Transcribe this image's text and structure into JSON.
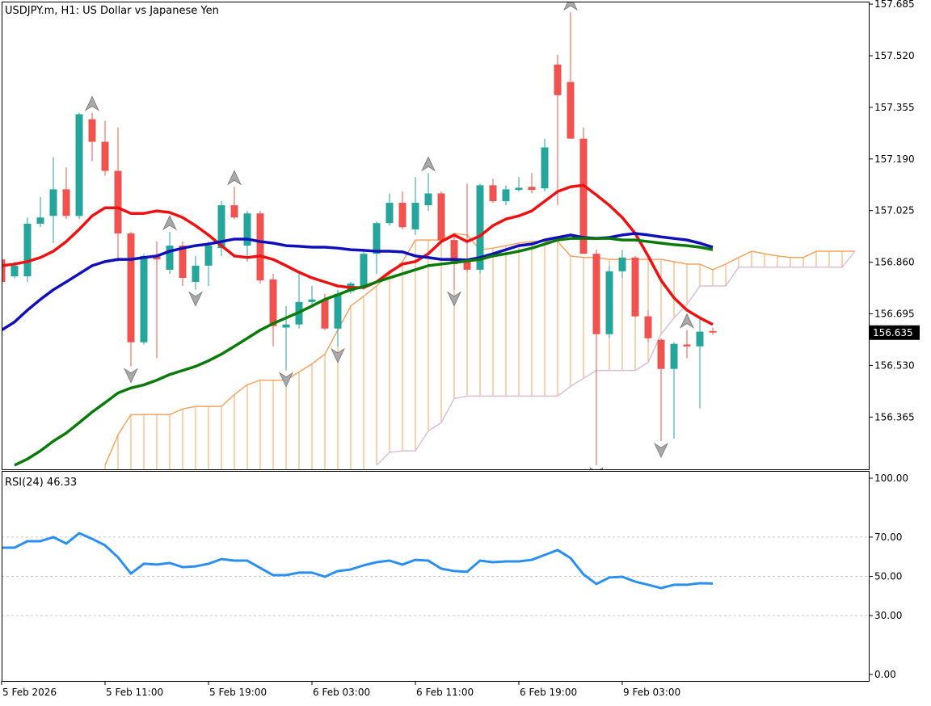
{
  "chart_data": [
    {
      "type": "candlestick",
      "title": "USDJPY.m, H1:  US Dollar vs Japanese Yen",
      "categories": [
        "5 Feb 2026",
        null,
        null,
        null,
        null,
        null,
        null,
        null,
        "5 Feb 11:00",
        null,
        null,
        null,
        null,
        null,
        null,
        null,
        "5 Feb 19:00",
        null,
        null,
        null,
        null,
        null,
        null,
        null,
        "6 Feb 03:00",
        null,
        null,
        null,
        null,
        null,
        null,
        null,
        "6 Feb 11:00",
        null,
        null,
        null,
        null,
        null,
        null,
        null,
        "6 Feb 19:00",
        null,
        null,
        null,
        null,
        null,
        null,
        null,
        "9 Feb 03:00",
        null,
        null,
        null,
        null,
        null,
        null,
        null,
        null,
        null,
        null,
        null,
        null,
        null,
        null,
        null,
        null,
        null,
        null
      ],
      "open": [
        156.869,
        156.815,
        156.815,
        156.983,
        157.008,
        157.093,
        157.008,
        157.317,
        157.245,
        157.152,
        156.952,
        156.604,
        156.88,
        156.836,
        156.913,
        156.797,
        156.849,
        156.905,
        157.042,
        156.913,
        157.016,
        156.805,
        156.651,
        156.661,
        156.733,
        156.741,
        156.648,
        156.767,
        156.784,
        156.887,
        156.985,
        157.05,
        156.965,
        157.042,
        157.08,
        156.931,
        156.869,
        156.836,
        157.106,
        157.055,
        157.091,
        157.101,
        157.096,
        157.492,
        157.436,
        157.255,
        156.887,
        156.63,
        156.831,
        156.875,
        156.687,
        156.612,
        156.519,
        156.597,
        156.591,
        156.64,
        null,
        null,
        null,
        null,
        null,
        null,
        null,
        null,
        null,
        null,
        null
      ],
      "high": [
        156.88,
        156.862,
        157.003,
        157.068,
        157.196,
        157.163,
        157.338,
        157.338,
        157.312,
        157.291,
        156.957,
        156.887,
        156.926,
        156.957,
        156.926,
        156.88,
        156.926,
        157.055,
        157.101,
        157.024,
        157.024,
        156.823,
        156.72,
        156.823,
        156.784,
        156.759,
        156.772,
        156.797,
        156.895,
        156.99,
        157.08,
        157.086,
        157.132,
        157.145,
        157.086,
        156.952,
        157.111,
        157.111,
        157.127,
        157.106,
        157.132,
        157.145,
        157.255,
        157.523,
        157.659,
        157.291,
        156.9,
        156.849,
        156.9,
        156.88,
        156.707,
        156.617,
        156.604,
        156.643,
        156.682,
        156.651,
        null,
        null,
        null,
        null,
        null,
        null,
        null,
        null,
        null,
        null,
        null
      ],
      "low": [
        156.792,
        156.808,
        156.797,
        156.972,
        156.921,
        156.998,
        156.998,
        157.183,
        157.137,
        156.862,
        156.527,
        156.597,
        156.553,
        156.823,
        156.784,
        156.772,
        156.784,
        156.88,
        156.998,
        156.862,
        156.792,
        156.591,
        156.514,
        156.648,
        156.72,
        156.643,
        156.591,
        156.759,
        156.772,
        156.823,
        156.977,
        156.965,
        156.947,
        157.024,
        156.921,
        156.772,
        156.828,
        156.823,
        157.05,
        157.042,
        157.086,
        157.08,
        157.086,
        157.042,
        157.255,
        156.887,
        156.211,
        156.617,
        156.81,
        156.682,
        156.604,
        156.288,
        156.296,
        156.553,
        156.393,
        156.628,
        null,
        null,
        null,
        null,
        null,
        null,
        null,
        null,
        null,
        null,
        null
      ],
      "close": [
        156.797,
        156.849,
        156.983,
        157.003,
        157.093,
        157.008,
        157.333,
        157.245,
        157.152,
        156.952,
        156.604,
        156.88,
        156.869,
        156.913,
        156.81,
        156.849,
        156.913,
        157.042,
        157.003,
        157.016,
        156.802,
        156.656,
        156.661,
        156.733,
        156.741,
        156.648,
        156.759,
        156.792,
        156.887,
        156.985,
        157.05,
        156.972,
        157.05,
        157.08,
        156.931,
        156.854,
        156.836,
        157.106,
        157.055,
        157.093,
        157.098,
        157.091,
        157.227,
        157.394,
        157.255,
        156.887,
        156.63,
        156.831,
        156.875,
        156.687,
        156.617,
        156.519,
        156.599,
        156.591,
        156.638,
        156.635,
        null,
        null,
        null,
        null,
        null,
        null,
        null,
        null,
        null,
        null,
        null
      ],
      "up_color": "#26a69a",
      "down_color": "#ef5350",
      "overlays": [
        {
          "color": "#ee1111",
          "values": [
            156.849,
            156.854,
            156.862,
            156.875,
            156.895,
            156.926,
            156.965,
            157.008,
            157.034,
            157.034,
            157.016,
            157.016,
            157.024,
            157.019,
            157.003,
            156.977,
            156.947,
            156.913,
            156.88,
            156.875,
            156.88,
            156.869,
            156.849,
            156.828,
            156.81,
            156.797,
            156.784,
            156.779,
            156.779,
            156.797,
            156.828,
            156.854,
            156.862,
            156.887,
            156.926,
            156.947,
            156.926,
            156.944,
            156.977,
            156.998,
            157.008,
            157.024,
            157.055,
            157.086,
            157.101,
            157.106,
            157.075,
            157.042,
            157.003,
            156.952,
            156.88,
            156.802,
            156.746,
            156.707,
            156.682,
            156.661,
            null,
            null,
            null,
            null,
            null,
            null,
            null,
            null,
            null,
            null,
            null
          ]
        },
        {
          "color": "#1010bb",
          "values": [
            156.643,
            156.669,
            156.707,
            156.741,
            156.772,
            156.797,
            156.823,
            156.849,
            156.862,
            156.869,
            156.869,
            156.875,
            156.88,
            156.895,
            156.905,
            156.913,
            156.918,
            156.926,
            156.934,
            156.934,
            156.926,
            156.921,
            156.913,
            156.911,
            156.908,
            156.908,
            156.905,
            156.9,
            156.898,
            156.895,
            156.895,
            156.893,
            156.88,
            156.875,
            156.869,
            156.869,
            156.867,
            156.875,
            156.887,
            156.9,
            156.913,
            156.918,
            156.931,
            156.939,
            156.947,
            156.939,
            156.936,
            156.939,
            156.947,
            156.952,
            156.947,
            156.941,
            156.936,
            156.931,
            156.921,
            156.908,
            null,
            null,
            null,
            null,
            null,
            null,
            null,
            null,
            null,
            null,
            null
          ]
        },
        {
          "color": "#0a7a0a",
          "values": [
            null,
            156.211,
            156.231,
            156.257,
            156.288,
            156.314,
            156.347,
            156.381,
            156.411,
            156.442,
            156.458,
            156.468,
            156.483,
            156.501,
            156.514,
            156.527,
            156.545,
            156.566,
            156.591,
            156.617,
            156.643,
            156.664,
            156.682,
            156.7,
            156.72,
            156.741,
            156.756,
            156.772,
            156.782,
            156.797,
            156.81,
            156.823,
            156.836,
            156.849,
            156.854,
            156.859,
            156.864,
            156.869,
            156.88,
            156.887,
            156.895,
            156.905,
            156.918,
            156.931,
            156.936,
            156.936,
            156.936,
            156.936,
            156.931,
            156.931,
            156.926,
            156.921,
            156.916,
            156.913,
            156.908,
            156.9,
            null,
            null,
            null,
            null,
            null,
            null,
            null,
            null,
            null,
            null,
            null
          ]
        }
      ],
      "span_a": {
        "color": "#f4a460",
        "values": [
          null,
          null,
          null,
          null,
          null,
          null,
          null,
          null,
          156.211,
          156.308,
          156.373,
          156.373,
          156.373,
          156.373,
          156.391,
          156.399,
          156.399,
          156.399,
          156.437,
          156.468,
          156.483,
          156.483,
          156.483,
          156.509,
          156.535,
          156.566,
          156.643,
          156.72,
          156.751,
          156.784,
          156.823,
          156.862,
          156.931,
          156.931,
          156.931,
          156.952,
          156.947,
          156.9,
          156.905,
          156.913,
          156.921,
          156.926,
          156.926,
          156.926,
          156.88,
          156.875,
          156.875,
          156.869,
          156.869,
          156.869,
          156.869,
          156.869,
          156.862,
          156.854,
          156.854,
          156.836,
          156.854,
          156.875,
          156.895,
          156.887,
          156.88,
          156.875,
          156.875,
          156.895,
          156.895,
          156.895,
          156.895
        ]
      },
      "span_b": {
        "color": "#d8bfd8",
        "values": [
          null,
          null,
          null,
          null,
          null,
          null,
          null,
          null,
          null,
          null,
          null,
          null,
          null,
          null,
          null,
          null,
          null,
          null,
          null,
          null,
          null,
          null,
          null,
          null,
          null,
          null,
          null,
          null,
          null,
          156.211,
          156.252,
          156.257,
          156.257,
          156.321,
          156.347,
          156.424,
          156.432,
          156.432,
          156.432,
          156.432,
          156.432,
          156.432,
          156.432,
          156.432,
          156.463,
          156.489,
          156.514,
          156.514,
          156.514,
          156.514,
          156.54,
          156.63,
          156.682,
          156.725,
          156.784,
          156.784,
          156.784,
          156.844,
          156.844,
          156.844,
          156.844,
          156.844,
          156.844,
          156.844,
          156.844,
          156.844,
          156.895
        ]
      },
      "fractals": {
        "color": "#a8a8a8",
        "up": [
          7,
          13,
          18,
          33,
          44,
          53
        ],
        "down": [
          10,
          15,
          22,
          26,
          35,
          46,
          51
        ]
      },
      "last_price": 156.635,
      "ylim": [
        156.198,
        157.693
      ],
      "yticks": [
        157.685,
        {
          "value": 157.52,
          "label": "157.520"
        },
        157.355,
        {
          "value": 157.19,
          "label": "157.190"
        },
        157.025,
        {
          "value": 156.86,
          "label": "156.860"
        },
        156.695,
        {
          "value": 156.53,
          "label": "156.530"
        },
        156.365
      ]
    },
    {
      "type": "line",
      "title": "RSI(24) 46.33",
      "color": "#2b8ff0",
      "values": [
        64.6,
        64.6,
        67.9,
        67.9,
        70.0,
        66.7,
        72.0,
        69.1,
        65.8,
        59.7,
        51.4,
        56.4,
        56.0,
        56.8,
        54.7,
        55.1,
        56.4,
        58.8,
        58.0,
        58.0,
        54.3,
        50.6,
        50.6,
        51.9,
        51.9,
        49.8,
        52.7,
        53.5,
        55.6,
        57.2,
        58.0,
        56.0,
        58.4,
        58.0,
        53.9,
        52.7,
        52.3,
        58.0,
        57.2,
        57.6,
        57.6,
        58.4,
        60.9,
        63.4,
        59.3,
        51.0,
        46.1,
        49.4,
        49.8,
        47.3,
        45.7,
        44.0,
        45.7,
        45.7,
        46.5,
        46.33
      ],
      "ylim": [
        -3.3,
        103.7
      ],
      "yticks": [
        {
          "value": 100,
          "label": "100.00"
        },
        {
          "value": 70,
          "label": "70.00"
        },
        {
          "value": 50,
          "label": "50.00"
        },
        {
          "value": 30,
          "label": "30.00"
        },
        {
          "value": 0,
          "label": "0.00"
        }
      ]
    }
  ]
}
